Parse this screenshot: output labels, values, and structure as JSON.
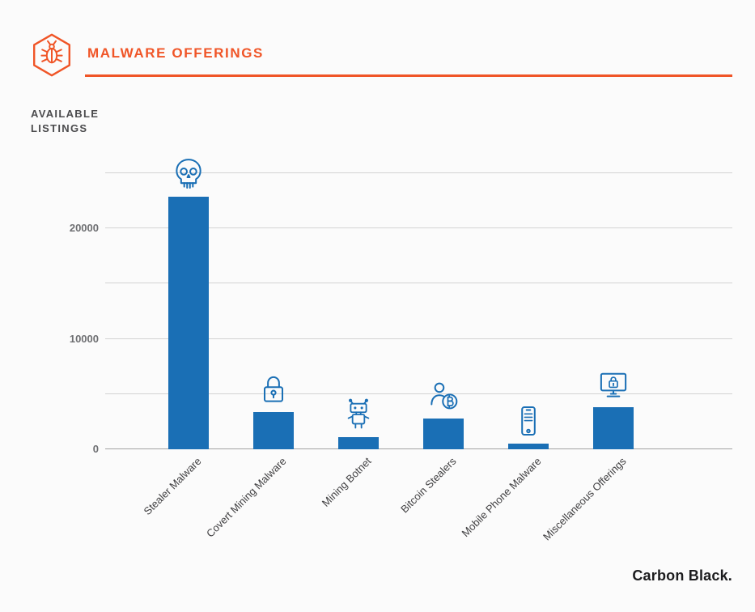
{
  "header": {
    "title": "MALWARE OFFERINGS",
    "icon": "bug-hexagon-icon"
  },
  "axis_title": {
    "line1": "AVAILABLE",
    "line2": "LISTINGS"
  },
  "footer": {
    "brand_name": "Carbon Black",
    "brand_dot": "."
  },
  "colors": {
    "accent_orange": "#F05527",
    "bar_blue": "#1A6FB5",
    "grid_gray": "#D3D3D3",
    "axis_gray": "#A3A3A3",
    "tick_text_gray": "#6D6E71",
    "label_text_gray": "#414042",
    "background": "#FBFBFB"
  },
  "chart_data": {
    "type": "bar",
    "title": "Malware Offerings",
    "ylabel": "Available Listings",
    "categories": [
      "Stealer Malware",
      "Covert Mining Malware",
      "Mining Botnet",
      "Bitcoin Stealers",
      "Mobile Phone Malware",
      "Miscellaneous Offerings"
    ],
    "values": [
      22900,
      3400,
      1100,
      2800,
      500,
      3800
    ],
    "icons": [
      "skull-icon",
      "padlock-icon",
      "robot-icon",
      "bitcoin-stealer-icon",
      "smartphone-icon",
      "monitor-lock-icon"
    ],
    "ylim": [
      0,
      25000
    ],
    "yticks": [
      0,
      10000,
      20000
    ],
    "gridline_step": 5000,
    "grid": true,
    "legend": false,
    "bar_color": "#1A6FB5"
  }
}
